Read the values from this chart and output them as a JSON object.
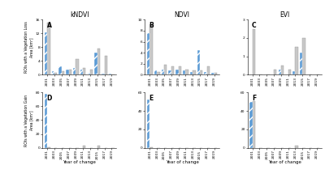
{
  "col_titles": [
    "kNDVI",
    "NDVI",
    "EVI"
  ],
  "row_labels": [
    "ROIs with a Vegetation Loss",
    "ROIs with a Vegetation Gain"
  ],
  "subplot_labels": [
    "A",
    "B",
    "C",
    "D",
    "E",
    "F"
  ],
  "years": [
    2001,
    2003,
    2005,
    2007,
    2009,
    2011,
    2013,
    2015,
    2017,
    2019
  ],
  "xlabel": "Year of change",
  "ylabel": "Area [km²]",
  "blue_color": "#5b9bd5",
  "gray_color": "#c8c8c8",
  "hatch": "///",
  "data": {
    "A_blue": [
      12.2,
      1.0,
      2.5,
      1.5,
      2.0,
      1.5,
      0.5,
      6.5,
      0.3,
      0.3
    ],
    "A_gray": [
      15.0,
      0.5,
      1.0,
      1.5,
      4.5,
      2.0,
      1.5,
      7.5,
      5.5,
      0.2
    ],
    "B_blue": [
      7.5,
      0.8,
      1.0,
      0.8,
      1.0,
      0.8,
      0.5,
      4.5,
      0.5,
      0.3
    ],
    "B_gray": [
      9.2,
      0.5,
      1.8,
      1.5,
      1.5,
      1.0,
      0.8,
      0.8,
      1.5,
      0.3
    ],
    "C_blue": [
      0.0,
      0.0,
      0.0,
      0.0,
      0.3,
      0.0,
      0.2,
      1.2,
      0.0,
      0.0
    ],
    "C_gray": [
      2.5,
      0.0,
      0.0,
      0.3,
      0.5,
      0.3,
      1.5,
      2.0,
      0.0,
      0.0
    ],
    "D_blue": [
      78.0,
      0.05,
      0.05,
      0.05,
      0.05,
      0.05,
      0.05,
      0.05,
      0.05,
      0.05
    ],
    "D_gray": [
      0.2,
      0.05,
      0.05,
      0.05,
      0.05,
      3.5,
      0.05,
      2.5,
      0.05,
      0.05
    ],
    "E_blue": [
      52.0,
      0.05,
      0.05,
      0.05,
      0.05,
      0.05,
      0.05,
      0.05,
      0.05,
      0.05
    ],
    "E_gray": [
      0.1,
      0.05,
      0.05,
      0.05,
      0.05,
      0.05,
      0.05,
      0.05,
      0.05,
      0.05
    ],
    "F_blue": [
      50.0,
      0.05,
      0.05,
      0.05,
      0.05,
      0.05,
      0.05,
      0.05,
      0.05,
      0.05
    ],
    "F_gray": [
      51.0,
      0.05,
      0.05,
      0.05,
      0.05,
      0.05,
      2.5,
      0.05,
      0.05,
      0.05
    ]
  },
  "ylims": {
    "A": [
      0,
      16
    ],
    "B": [
      0,
      10
    ],
    "C": [
      0,
      3
    ],
    "D": [
      0,
      80
    ],
    "E": [
      0,
      60
    ],
    "F": [
      0,
      60
    ]
  },
  "yticks": {
    "A": [
      0,
      4,
      8,
      12,
      16
    ],
    "B": [
      0,
      2,
      4,
      6,
      8,
      10
    ],
    "C": [
      0,
      1,
      2,
      3
    ],
    "D": [
      0,
      20,
      40,
      60,
      80
    ],
    "E": [
      0,
      20,
      40,
      60
    ],
    "F": [
      0,
      20,
      40,
      60
    ]
  }
}
